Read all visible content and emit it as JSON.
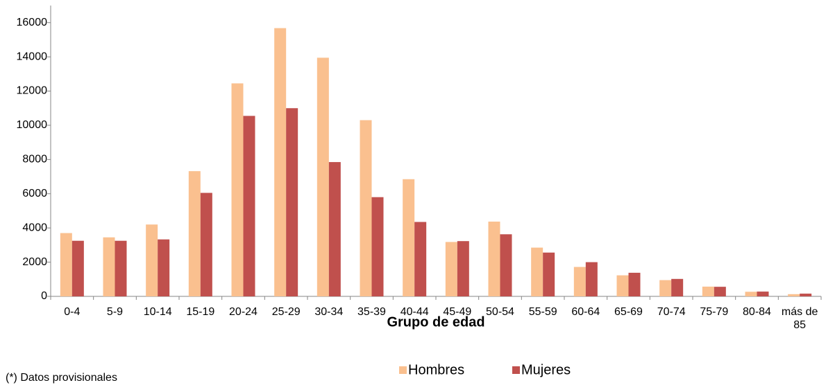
{
  "chart_data": {
    "type": "bar",
    "x_label": "Grupo de edad",
    "note": "(*) Datos provisionales",
    "categories": [
      "0-4",
      "5-9",
      "10-14",
      "15-19",
      "20-24",
      "25-29",
      "30-34",
      "35-39",
      "40-44",
      "45-49",
      "50-54",
      "55-59",
      "60-64",
      "65-69",
      "70-74",
      "75-79",
      "80-84",
      "más de 85"
    ],
    "series": [
      {
        "name": "Hombres",
        "color": "#fac08f",
        "values": [
          3700,
          3450,
          4200,
          7320,
          12450,
          15680,
          13950,
          10300,
          6850,
          3180,
          4370,
          2850,
          1720,
          1230,
          950,
          570,
          270,
          130
        ]
      },
      {
        "name": "Mujeres",
        "color": "#c0504d",
        "values": [
          3250,
          3250,
          3330,
          6050,
          10550,
          11000,
          7850,
          5800,
          4350,
          3230,
          3630,
          2560,
          2000,
          1380,
          1020,
          560,
          280,
          160
        ]
      }
    ],
    "ylim": [
      0,
      17000
    ],
    "yticks": [
      0,
      2000,
      4000,
      6000,
      8000,
      10000,
      12000,
      14000,
      16000
    ],
    "grid": false,
    "legend": "bottom"
  }
}
